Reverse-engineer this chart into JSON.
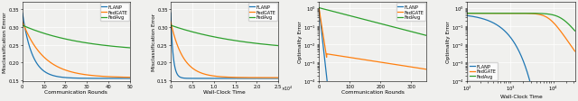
{
  "colors": {
    "FLANP": "#1f77b4",
    "FedGATE": "#ff7f0e",
    "FedAvg": "#2ca02c"
  },
  "plot1": {
    "xlabel": "Communication Rounds",
    "ylabel": "Misclassification Emror",
    "xlim": [
      0,
      50
    ],
    "ylim": [
      0.148,
      0.37
    ],
    "yticks": [
      0.15,
      0.2,
      0.25,
      0.3,
      0.35
    ],
    "xticks": [
      0,
      10,
      20,
      30,
      40,
      50
    ]
  },
  "plot2": {
    "xlabel": "Wall-Clock Time",
    "ylabel": "Misclassification Error",
    "xlim": [
      0,
      25000
    ],
    "ylim": [
      0.148,
      0.37
    ],
    "yticks": [
      0.15,
      0.2,
      0.25,
      0.3,
      0.35
    ],
    "xtick_vals": [
      0,
      5000,
      10000,
      15000,
      20000,
      25000
    ],
    "xtick_labels": [
      "0",
      "0.5",
      "1.0",
      "1.5",
      "2.0",
      "2.5"
    ]
  },
  "plot3": {
    "xlabel": "Communication Rounds",
    "ylabel": "Optimality Error",
    "xlim": [
      0,
      350
    ],
    "xticks": [
      0,
      100,
      200,
      300
    ]
  },
  "plot4": {
    "xlabel": "Wall-Clock Time",
    "ylabel": "Optimality Error"
  },
  "bg_color": "#f0f0ee",
  "grid_color": "white"
}
